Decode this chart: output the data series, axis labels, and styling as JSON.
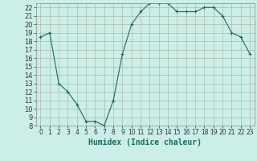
{
  "x": [
    0,
    1,
    2,
    3,
    4,
    5,
    6,
    7,
    8,
    9,
    10,
    11,
    12,
    13,
    14,
    15,
    16,
    17,
    18,
    19,
    20,
    21,
    22,
    23
  ],
  "y": [
    18.5,
    19.0,
    13.0,
    12.0,
    10.5,
    8.5,
    8.5,
    8.0,
    11.0,
    16.5,
    20.0,
    21.5,
    22.5,
    22.5,
    22.5,
    21.5,
    21.5,
    21.5,
    22.0,
    22.0,
    21.0,
    19.0,
    18.5,
    16.5
  ],
  "line_color": "#1a6b5e",
  "marker": "+",
  "marker_size": 3,
  "marker_linewidth": 0.8,
  "bg_color": "#cceee8",
  "grid_color": "#aabbaa",
  "xlabel": "Humidex (Indice chaleur)",
  "ylim": [
    8,
    22.5
  ],
  "xlim": [
    -0.5,
    23.5
  ],
  "yticks": [
    8,
    9,
    10,
    11,
    12,
    13,
    14,
    15,
    16,
    17,
    18,
    19,
    20,
    21,
    22
  ],
  "xticks": [
    0,
    1,
    2,
    3,
    4,
    5,
    6,
    7,
    8,
    9,
    10,
    11,
    12,
    13,
    14,
    15,
    16,
    17,
    18,
    19,
    20,
    21,
    22,
    23
  ],
  "tick_fontsize": 5.5,
  "xlabel_fontsize": 7,
  "line_width": 0.8
}
